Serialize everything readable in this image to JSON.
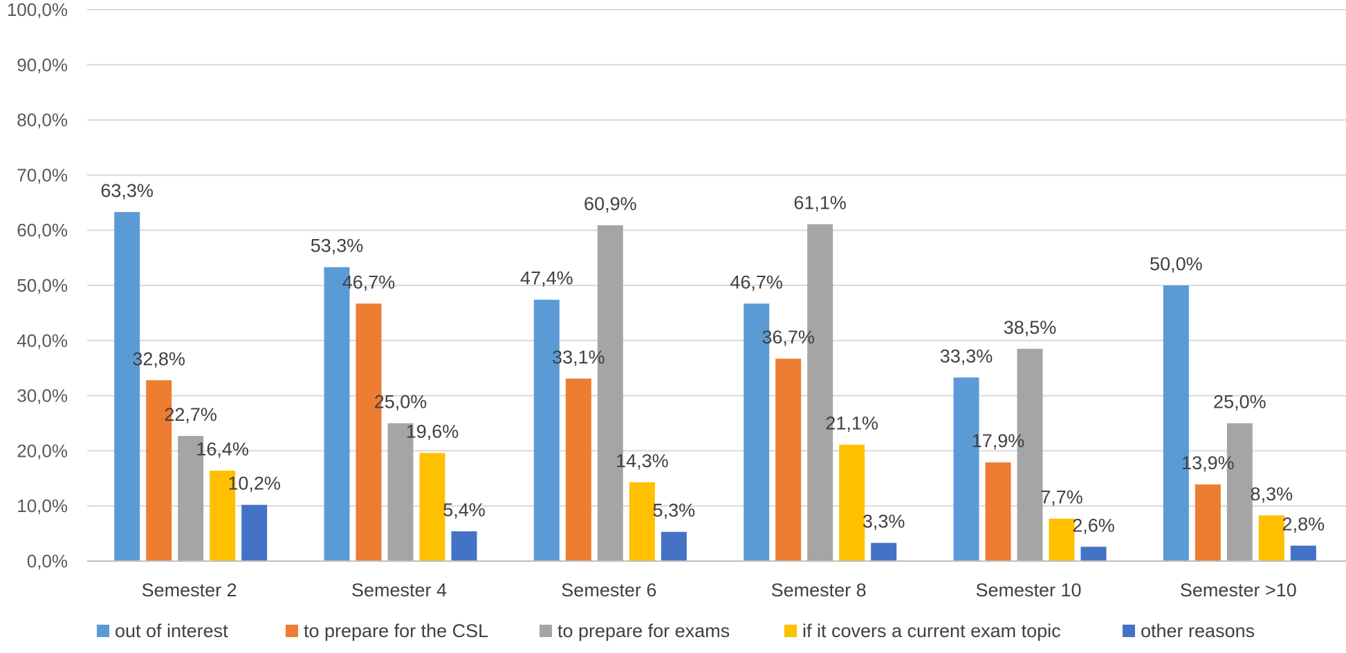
{
  "chart_data": {
    "type": "bar",
    "title": "",
    "xlabel": "",
    "ylabel": "",
    "ylim": [
      0,
      100
    ],
    "yticks": [
      "0,0%",
      "10,0%",
      "20,0%",
      "30,0%",
      "40,0%",
      "50,0%",
      "60,0%",
      "70,0%",
      "80,0%",
      "90,0%",
      "100,0%"
    ],
    "grid": true,
    "legend_position": "bottom",
    "categories": [
      "Semester 2",
      "Semester 4",
      "Semester 6",
      "Semester 8",
      "Semester 10",
      "Semester >10"
    ],
    "series": [
      {
        "name": "out of interest",
        "color": "#5b9bd5",
        "values": [
          63.3,
          53.3,
          47.4,
          46.7,
          33.3,
          50.0
        ],
        "labels": [
          "63,3%",
          "53,3%",
          "47,4%",
          "46,7%",
          "33,3%",
          "50,0%"
        ]
      },
      {
        "name": "to prepare for the CSL",
        "color": "#ed7d31",
        "values": [
          32.8,
          46.7,
          33.1,
          36.7,
          17.9,
          13.9
        ],
        "labels": [
          "32,8%",
          "46,7%",
          "33,1%",
          "36,7%",
          "17,9%",
          "13,9%"
        ]
      },
      {
        "name": "to prepare for exams",
        "color": "#a5a5a5",
        "values": [
          22.7,
          25.0,
          60.9,
          61.1,
          38.5,
          25.0
        ],
        "labels": [
          "22,7%",
          "25,0%",
          "60,9%",
          "61,1%",
          "38,5%",
          "25,0%"
        ]
      },
      {
        "name": "if it covers a current exam topic",
        "color": "#ffc000",
        "values": [
          16.4,
          19.6,
          14.3,
          21.1,
          7.7,
          8.3
        ],
        "labels": [
          "16,4%",
          "19,6%",
          "14,3%",
          "21,1%",
          "7,7%",
          "8,3%"
        ]
      },
      {
        "name": "other reasons",
        "color": "#4472c4",
        "values": [
          10.2,
          5.4,
          5.3,
          3.3,
          2.6,
          2.8
        ],
        "labels": [
          "10,2%",
          "5,4%",
          "5,3%",
          "3,3%",
          "2,6%",
          "2,8%"
        ]
      }
    ]
  }
}
